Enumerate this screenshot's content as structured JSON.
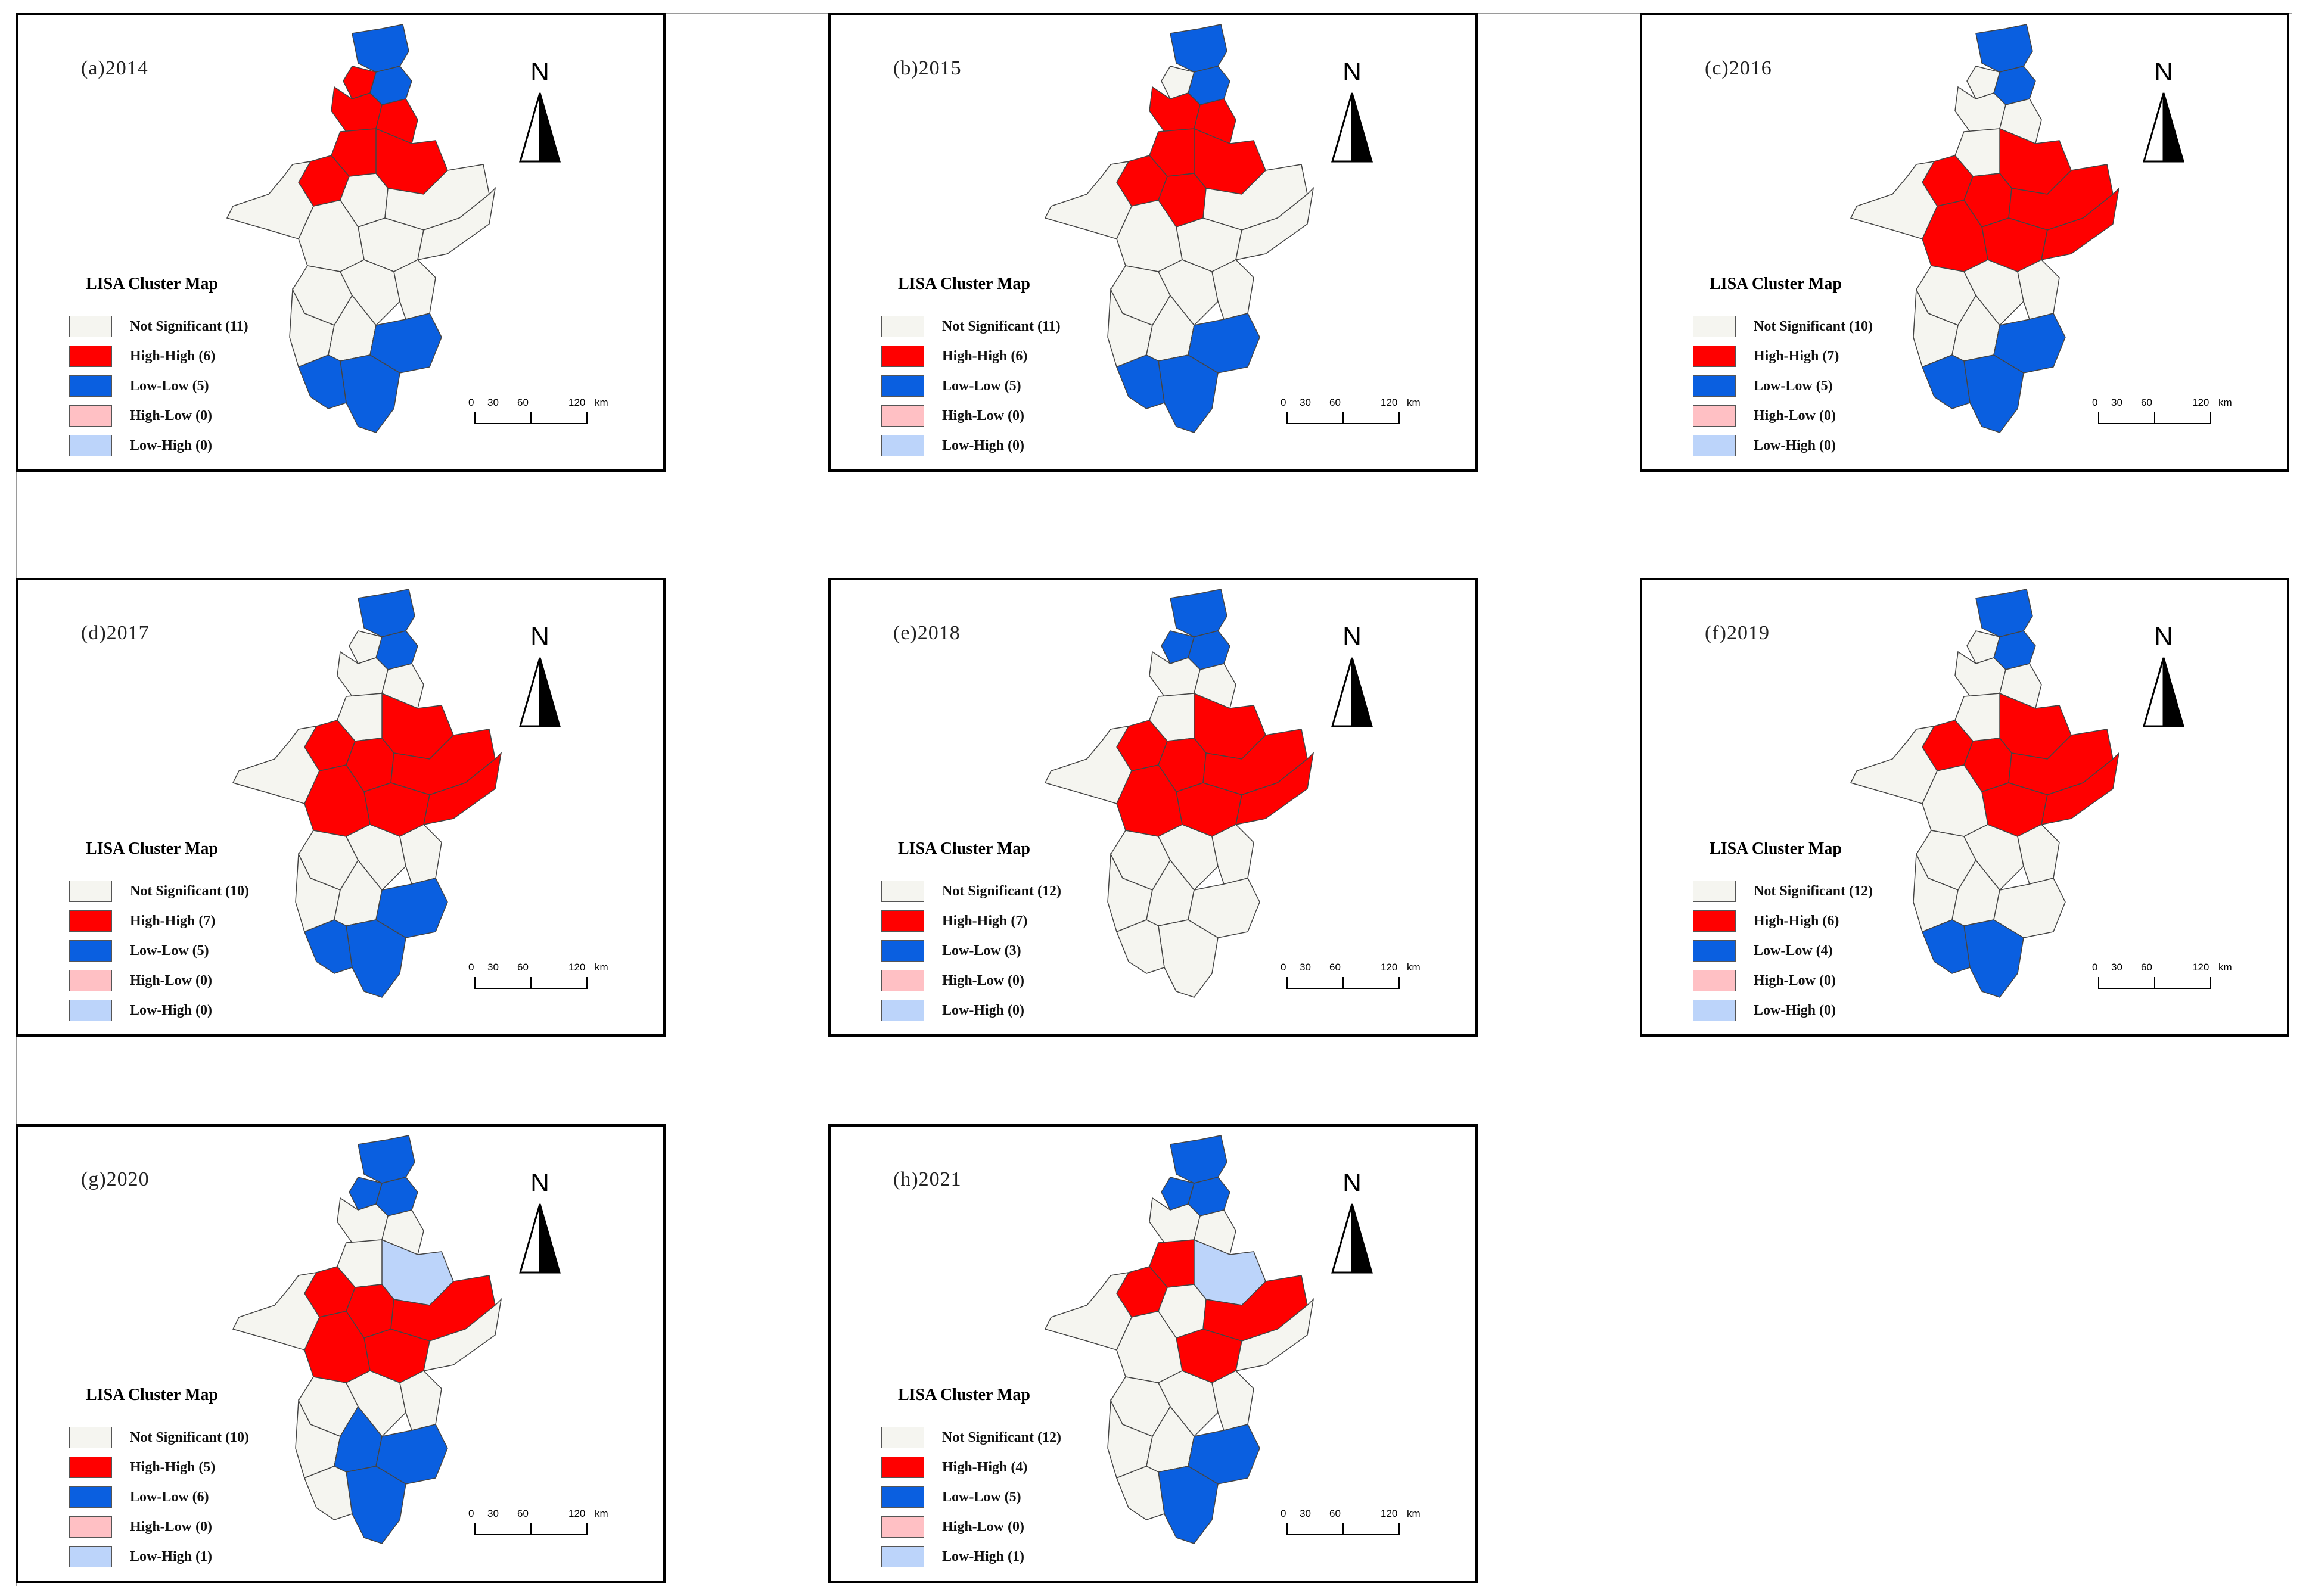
{
  "colors": {
    "not_significant": "#f5f5f0",
    "high_high": "#ff0000",
    "low_low": "#0a5fe0",
    "high_low": "#ffc0c4",
    "low_high": "#bcd4fa",
    "border": "#444444"
  },
  "legend_title": "LISA Cluster Map",
  "north_label": "N",
  "scalebar": {
    "ticks": [
      "0",
      "30",
      "60",
      "120"
    ],
    "unit": "km"
  },
  "panels": [
    {
      "title": "(a)2014",
      "legend": [
        "Not Significant (11)",
        "High-High (6)",
        "Low-Low (5)",
        "High-Low (0)",
        "Low-High (0)"
      ],
      "regions": [
        "LL",
        "LL",
        "HH",
        "HH",
        "HH",
        "HH",
        "HH",
        "HH",
        "NS",
        "NS",
        "NS",
        "NS",
        "NS",
        "NS",
        "NS",
        "NS",
        "NS",
        "NS",
        "NS",
        "LL",
        "LL",
        "LL"
      ]
    },
    {
      "title": "(b)2015",
      "legend": [
        "Not Significant (11)",
        "High-High (6)",
        "Low-Low (5)",
        "High-Low (0)",
        "Low-High (0)"
      ],
      "regions": [
        "LL",
        "LL",
        "NS",
        "HH",
        "HH",
        "HH",
        "HH",
        "HH",
        "HH",
        "NS",
        "NS",
        "NS",
        "NS",
        "NS",
        "NS",
        "NS",
        "NS",
        "NS",
        "NS",
        "LL",
        "LL",
        "LL"
      ]
    },
    {
      "title": "(c)2016",
      "legend": [
        "Not Significant (10)",
        "High-High (7)",
        "Low-Low (5)",
        "High-Low (0)",
        "Low-High (0)"
      ],
      "regions": [
        "LL",
        "LL",
        "NS",
        "NS",
        "NS",
        "NS",
        "HH",
        "HH",
        "HH",
        "HH",
        "HH",
        "HH",
        "HH",
        "NS",
        "NS",
        "NS",
        "NS",
        "NS",
        "NS",
        "LL",
        "LL",
        "LL"
      ]
    },
    {
      "title": "(d)2017",
      "legend": [
        "Not Significant (10)",
        "High-High (7)",
        "Low-Low (5)",
        "High-Low (0)",
        "Low-High (0)"
      ],
      "regions": [
        "LL",
        "LL",
        "NS",
        "NS",
        "NS",
        "NS",
        "HH",
        "HH",
        "HH",
        "HH",
        "HH",
        "HH",
        "HH",
        "NS",
        "NS",
        "NS",
        "NS",
        "NS",
        "NS",
        "LL",
        "LL",
        "LL"
      ]
    },
    {
      "title": "(e)2018",
      "legend": [
        "Not Significant (12)",
        "High-High (7)",
        "Low-Low (3)",
        "High-Low (0)",
        "Low-High (0)"
      ],
      "regions": [
        "LL",
        "LL",
        "LL",
        "NS",
        "NS",
        "NS",
        "HH",
        "HH",
        "HH",
        "HH",
        "HH",
        "HH",
        "HH",
        "NS",
        "NS",
        "NS",
        "NS",
        "NS",
        "NS",
        "NS",
        "NS",
        "NS"
      ]
    },
    {
      "title": "(f)2019",
      "legend": [
        "Not Significant (12)",
        "High-High (6)",
        "Low-Low (4)",
        "High-Low (0)",
        "Low-High (0)"
      ],
      "regions": [
        "LL",
        "LL",
        "NS",
        "NS",
        "NS",
        "NS",
        "HH",
        "HH",
        "HH",
        "HH",
        "HH",
        "NS",
        "HH",
        "NS",
        "NS",
        "NS",
        "NS",
        "NS",
        "NS",
        "NS",
        "LL",
        "LL"
      ]
    },
    {
      "title": "(g)2020",
      "legend": [
        "Not Significant (10)",
        "High-High (5)",
        "Low-Low (6)",
        "High-Low (0)",
        "Low-High (1)"
      ],
      "regions": [
        "LL",
        "LL",
        "LL",
        "NS",
        "NS",
        "NS",
        "LH",
        "HH",
        "HH",
        "HH",
        "HH",
        "HH",
        "NS",
        "NS",
        "NS",
        "NS",
        "NS",
        "NS",
        "LL",
        "LL",
        "LL",
        "NS"
      ]
    },
    {
      "title": "(h)2021",
      "legend": [
        "Not Significant (12)",
        "High-High (4)",
        "Low-Low (5)",
        "High-Low (0)",
        "Low-High (1)"
      ],
      "regions": [
        "LL",
        "LL",
        "LL",
        "NS",
        "NS",
        "HH",
        "LH",
        "HH",
        "NS",
        "HH",
        "HH",
        "NS",
        "NS",
        "NS",
        "NS",
        "NS",
        "NS",
        "NS",
        "NS",
        "LL",
        "LL",
        "NS"
      ]
    }
  ]
}
